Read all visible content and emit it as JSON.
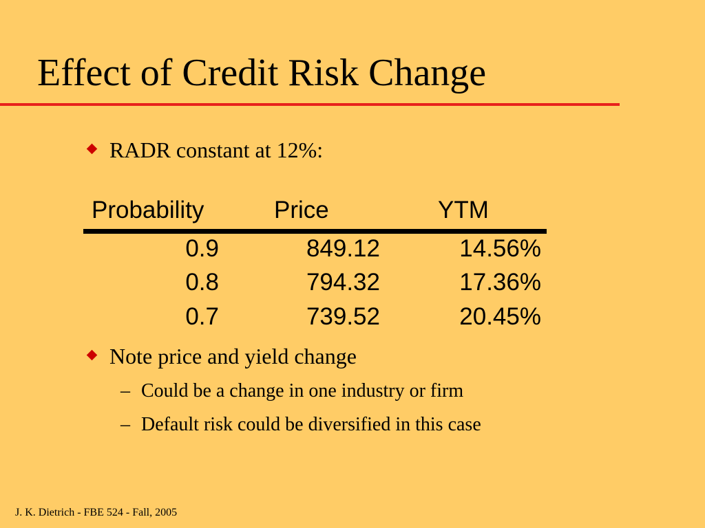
{
  "slide": {
    "title": "Effect of Credit Risk Change",
    "bullets": [
      "RADR constant at 12%:",
      "Note price and yield change"
    ],
    "sub_bullets": [
      "Could be a change in one industry or firm",
      "Default risk could be diversified in this case"
    ],
    "dash": "–",
    "table": {
      "headers": [
        "Probability",
        "Price",
        "YTM"
      ],
      "rows": [
        [
          "0.9",
          "849.12",
          "14.56%"
        ],
        [
          "0.8",
          "794.32",
          "17.36%"
        ],
        [
          "0.7",
          "739.52",
          "20.45%"
        ]
      ]
    },
    "footer": "J. K. Dietrich - FBE 524 - Fall, 2005",
    "colors": {
      "background": "#FFCC66",
      "title_rule": "#E8201C",
      "bullet": "#CC0000"
    }
  }
}
